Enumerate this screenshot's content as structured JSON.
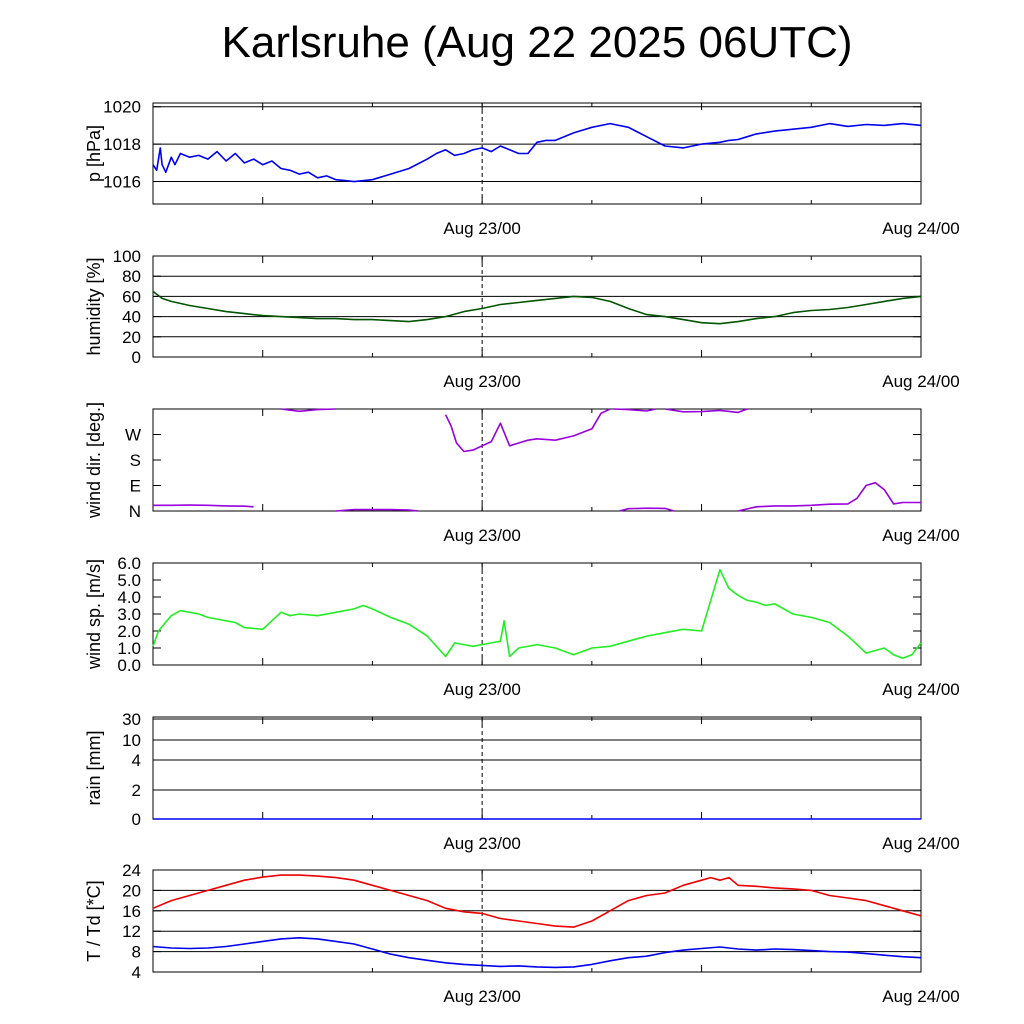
{
  "title": "Karlsruhe (Aug 22 2025 06UTC)",
  "chart_data": [
    {
      "type": "line",
      "ylabel": "p [hPa]",
      "ylim": [
        1014.8,
        1020.2
      ],
      "yticks": [
        1016,
        1018,
        1020
      ],
      "yticklabels": [
        "1016",
        "1018",
        "1020"
      ],
      "grid_y": [
        1016,
        1018,
        1020
      ],
      "x_range_hours": [
        0,
        42
      ],
      "xticklabels": [
        {
          "hour": 18,
          "label": "Aug 23/00"
        },
        {
          "hour": 42,
          "label": "Aug 24/00"
        }
      ],
      "vline_hour": 18,
      "series": [
        {
          "color": "#0000ee",
          "x": [
            0,
            0.2,
            0.4,
            0.5,
            0.7,
            1,
            1.2,
            1.5,
            2,
            2.5,
            3,
            3.5,
            4,
            4.5,
            5,
            5.5,
            6,
            6.5,
            7,
            7.5,
            8,
            8.5,
            9,
            9.5,
            10,
            10.5,
            11,
            12,
            13,
            14,
            15,
            15.5,
            16,
            16.5,
            17,
            17.5,
            18,
            18.5,
            19,
            19.5,
            20,
            20.5,
            21,
            21.5,
            22,
            23,
            24,
            25,
            26,
            27,
            28,
            29,
            30,
            31,
            31.5,
            32,
            32.5,
            33,
            34,
            35,
            36,
            37,
            38,
            39,
            40,
            41,
            42
          ],
          "y": [
            1016.9,
            1016.6,
            1017.8,
            1016.9,
            1016.5,
            1017.3,
            1016.9,
            1017.5,
            1017.3,
            1017.4,
            1017.2,
            1017.6,
            1017.1,
            1017.5,
            1017.0,
            1017.2,
            1016.9,
            1017.1,
            1016.7,
            1016.6,
            1016.4,
            1016.5,
            1016.2,
            1016.3,
            1016.1,
            1016.05,
            1016.0,
            1016.1,
            1016.4,
            1016.7,
            1017.2,
            1017.5,
            1017.7,
            1017.4,
            1017.5,
            1017.7,
            1017.8,
            1017.6,
            1017.9,
            1017.7,
            1017.5,
            1017.5,
            1018.1,
            1018.2,
            1018.2,
            1018.6,
            1018.9,
            1019.1,
            1018.9,
            1018.4,
            1017.9,
            1017.8,
            1018.0,
            1018.1,
            1018.2,
            1018.25,
            1018.4,
            1018.55,
            1018.7,
            1018.8,
            1018.9,
            1019.1,
            1018.95,
            1019.05,
            1019.0,
            1019.1,
            1019.0
          ]
        }
      ]
    },
    {
      "type": "line",
      "ylabel": "humidity [%]",
      "ylim": [
        0,
        100
      ],
      "yticks": [
        0,
        20,
        40,
        60,
        80,
        100
      ],
      "yticklabels": [
        "0",
        "20",
        "40",
        "60",
        "80",
        "100"
      ],
      "grid_y": [
        20,
        40,
        60,
        80,
        100
      ],
      "x_range_hours": [
        0,
        42
      ],
      "xticklabels": [
        {
          "hour": 18,
          "label": "Aug 23/00"
        },
        {
          "hour": 42,
          "label": "Aug 24/00"
        }
      ],
      "vline_hour": 18,
      "series": [
        {
          "color": "#005500",
          "x": [
            0,
            0.5,
            1,
            2,
            3,
            4,
            5,
            6,
            7,
            8,
            9,
            10,
            11,
            12,
            13,
            14,
            15,
            16,
            17,
            18,
            19,
            20,
            21,
            22,
            23,
            24,
            25,
            26,
            27,
            28,
            29,
            30,
            31,
            32,
            33,
            34,
            35,
            36,
            37,
            38,
            39,
            40,
            41,
            42
          ],
          "y": [
            65,
            58,
            55,
            51,
            48,
            45,
            43,
            41,
            40,
            39,
            38,
            38,
            37,
            37,
            36,
            35,
            37,
            40,
            45,
            48,
            52,
            54,
            56,
            58,
            60,
            59,
            55,
            48,
            42,
            40,
            37,
            34,
            33,
            35,
            38,
            40,
            44,
            46,
            47,
            49,
            52,
            55,
            58,
            60
          ]
        }
      ]
    },
    {
      "type": "line",
      "ylabel": "wind dir. [deg.]",
      "ylim": [
        0,
        360
      ],
      "yticks": [
        0,
        90,
        180,
        270
      ],
      "yticklabels": [
        "N",
        "E",
        "S",
        "W"
      ],
      "grid_y": [],
      "x_range_hours": [
        0,
        42
      ],
      "xticklabels": [
        {
          "hour": 18,
          "label": "Aug 23/00"
        },
        {
          "hour": 42,
          "label": "Aug 24/00"
        }
      ],
      "vline_hour": 18,
      "series": [
        {
          "color": "#9900dd",
          "x": [
            0,
            1,
            2,
            3,
            4,
            5,
            5.5
          ],
          "y": [
            20,
            20,
            21,
            20,
            18,
            17,
            15
          ]
        },
        {
          "color": "#9900dd",
          "x": [
            7,
            8,
            9,
            10
          ],
          "y": [
            360,
            352,
            358,
            360
          ]
        },
        {
          "color": "#9900dd",
          "x": [
            10,
            11,
            12,
            13,
            14,
            14.5
          ],
          "y": [
            0,
            5,
            5,
            5,
            3,
            0
          ]
        },
        {
          "color": "#9900dd",
          "x": [
            16,
            16.3,
            16.6,
            17,
            17.5,
            18,
            18.5,
            19,
            19.5,
            20,
            20.5,
            21,
            22,
            23,
            24,
            24.5,
            25
          ],
          "y": [
            340,
            300,
            240,
            210,
            215,
            230,
            245,
            310,
            230,
            240,
            250,
            255,
            250,
            265,
            290,
            345,
            360
          ]
        },
        {
          "color": "#9900dd",
          "x": [
            25.2,
            26,
            27,
            27.5
          ],
          "y": [
            360,
            358,
            353,
            360
          ]
        },
        {
          "color": "#9900dd",
          "x": [
            28,
            29,
            30,
            31,
            32,
            32.5
          ],
          "y": [
            360,
            350,
            351,
            355,
            348,
            360
          ]
        },
        {
          "color": "#9900dd",
          "x": [
            25.5,
            26,
            27,
            28,
            28.5
          ],
          "y": [
            0,
            8,
            10,
            9,
            0
          ]
        },
        {
          "color": "#9900dd",
          "x": [
            32,
            33,
            34,
            35,
            36,
            37,
            38,
            38.5,
            39,
            39.5,
            40,
            40.5,
            41,
            42
          ],
          "y": [
            0,
            15,
            18,
            18,
            20,
            24,
            25,
            45,
            90,
            100,
            75,
            25,
            30,
            30
          ]
        }
      ]
    },
    {
      "type": "line",
      "ylabel": "wind sp. [m/s]",
      "ylim": [
        0,
        6
      ],
      "yticks": [
        0,
        1,
        2,
        3,
        4,
        5,
        6
      ],
      "yticklabels": [
        "0.0",
        "1.0",
        "2.0",
        "3.0",
        "4.0",
        "5.0",
        "6.0"
      ],
      "grid_y": [],
      "x_range_hours": [
        0,
        42
      ],
      "xticklabels": [
        {
          "hour": 18,
          "label": "Aug 23/00"
        },
        {
          "hour": 42,
          "label": "Aug 24/00"
        }
      ],
      "vline_hour": 18,
      "series": [
        {
          "color": "#22ee22",
          "x": [
            0,
            0.3,
            0.6,
            1,
            1.5,
            2,
            2.5,
            3,
            3.5,
            4,
            4.5,
            5,
            6,
            7,
            7.5,
            8,
            9,
            10,
            11,
            11.5,
            12,
            13,
            14,
            15,
            16,
            16.5,
            17,
            17.5,
            18,
            18.5,
            19,
            19.2,
            19.5,
            20,
            21,
            22,
            23,
            24,
            25,
            26,
            27,
            28,
            29,
            30,
            31,
            31.5,
            32,
            32.5,
            33,
            33.5,
            34,
            35,
            36,
            37,
            38,
            39,
            40,
            40.5,
            41,
            41.5,
            42
          ],
          "y": [
            1.1,
            2.0,
            2.4,
            2.9,
            3.2,
            3.1,
            3.0,
            2.8,
            2.7,
            2.6,
            2.5,
            2.2,
            2.1,
            3.1,
            2.9,
            3.0,
            2.9,
            3.1,
            3.3,
            3.5,
            3.3,
            2.8,
            2.4,
            1.7,
            0.5,
            1.3,
            1.2,
            1.1,
            1.2,
            1.3,
            1.4,
            2.6,
            0.5,
            1.0,
            1.2,
            1.0,
            0.6,
            1.0,
            1.1,
            1.4,
            1.7,
            1.9,
            2.1,
            2.0,
            5.6,
            4.5,
            4.1,
            3.8,
            3.7,
            3.5,
            3.6,
            3.0,
            2.8,
            2.5,
            1.7,
            0.7,
            1.0,
            0.6,
            0.4,
            0.6,
            1.3
          ]
        }
      ]
    },
    {
      "type": "line",
      "ylabel": "rain [mm]",
      "ylim": [
        0,
        32
      ],
      "yticks": [
        0,
        2,
        4,
        10,
        30
      ],
      "yticklabels": [
        "0",
        "2",
        "4",
        "10",
        "30"
      ],
      "grid_y": [
        2,
        4,
        10,
        30
      ],
      "x_range_hours": [
        0,
        42
      ],
      "xticklabels": [
        {
          "hour": 18,
          "label": "Aug 23/00"
        },
        {
          "hour": 42,
          "label": "Aug 24/00"
        }
      ],
      "vline_hour": 18,
      "series": [
        {
          "color": "#0000ee",
          "x": [
            0,
            42
          ],
          "y": [
            0,
            0
          ]
        }
      ]
    },
    {
      "type": "line",
      "ylabel": "T / Td [*C]",
      "ylim": [
        4,
        24
      ],
      "yticks": [
        4,
        8,
        12,
        16,
        20,
        24
      ],
      "yticklabels": [
        "4",
        "8",
        "12",
        "16",
        "20",
        "24"
      ],
      "grid_y": [
        8,
        12,
        16,
        20
      ],
      "x_range_hours": [
        0,
        42
      ],
      "xticklabels": [
        {
          "hour": 18,
          "label": "Aug 23/00"
        },
        {
          "hour": 42,
          "label": "Aug 24/00"
        }
      ],
      "vline_hour": 18,
      "series": [
        {
          "color": "#ee0000",
          "x": [
            0,
            1,
            2,
            3,
            4,
            5,
            6,
            7,
            8,
            9,
            10,
            11,
            12,
            13,
            14,
            15,
            16,
            17,
            18,
            19,
            20,
            21,
            22,
            23,
            24,
            25,
            26,
            27,
            28,
            29,
            30,
            30.5,
            31,
            31.5,
            32,
            33,
            34,
            35,
            36,
            37,
            38,
            39,
            40,
            41,
            42
          ],
          "y": [
            16.5,
            18,
            19,
            20,
            21,
            22,
            22.6,
            23,
            23,
            22.8,
            22.5,
            22,
            21,
            20,
            19,
            18,
            16.5,
            15.8,
            15.5,
            14.5,
            14,
            13.5,
            13,
            12.8,
            14,
            16,
            18,
            19,
            19.5,
            21,
            22,
            22.5,
            22,
            22.5,
            21,
            20.8,
            20.5,
            20.3,
            20,
            19,
            18.5,
            18,
            17,
            16,
            15
          ]
        },
        {
          "color": "#0000ee",
          "x": [
            0,
            1,
            2,
            3,
            4,
            5,
            6,
            7,
            8,
            9,
            10,
            11,
            12,
            13,
            14,
            15,
            16,
            17,
            18,
            19,
            20,
            21,
            22,
            23,
            24,
            25,
            26,
            27,
            28,
            29,
            30,
            31,
            32,
            33,
            34,
            35,
            36,
            37,
            38,
            39,
            40,
            41,
            42
          ],
          "y": [
            9,
            8.7,
            8.6,
            8.7,
            9,
            9.5,
            10,
            10.5,
            10.7,
            10.5,
            10,
            9.5,
            8.5,
            7.5,
            6.8,
            6.3,
            5.8,
            5.5,
            5.3,
            5.1,
            5.2,
            5,
            4.9,
            5,
            5.5,
            6.2,
            6.8,
            7.1,
            7.8,
            8.3,
            8.6,
            8.9,
            8.5,
            8.3,
            8.5,
            8.4,
            8.2,
            8,
            7.9,
            7.6,
            7.3,
            7,
            6.8
          ]
        }
      ]
    }
  ]
}
